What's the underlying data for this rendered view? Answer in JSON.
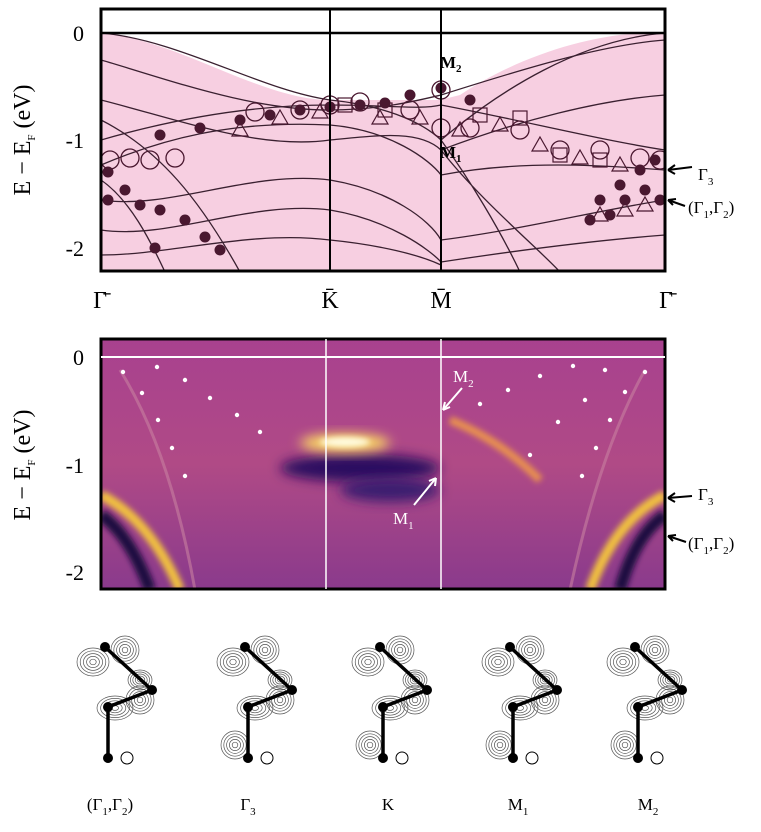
{
  "panels": [
    {
      "ylabel": [
        "E − E",
        "F",
        " (eV)"
      ],
      "yticks": [
        "0",
        "-1",
        "-2"
      ],
      "kpoints": [
        "Γ̄",
        "K̄",
        "M̄",
        "Γ̄"
      ],
      "annotations": {
        "M2": [
          "M",
          "2"
        ],
        "M1": [
          "M",
          "1"
        ],
        "G3": [
          "Γ",
          "3"
        ],
        "G12": [
          "(Γ",
          "1",
          ",Γ",
          "2",
          ")"
        ]
      }
    },
    {
      "ylabel": [
        "E − E",
        "F",
        " (eV)"
      ],
      "yticks": [
        "0",
        "-1",
        "-2"
      ],
      "annotations": {
        "M2": [
          "M",
          "2"
        ],
        "M1": [
          "M",
          "1"
        ],
        "G3": [
          "Γ",
          "3"
        ],
        "G12": [
          "(Γ",
          "1",
          ",Γ",
          "2",
          ")"
        ]
      }
    }
  ],
  "orbitals": [
    [
      "(Γ",
      "1",
      ",Γ",
      "2",
      ")"
    ],
    [
      "Γ",
      "3"
    ],
    [
      "K"
    ],
    [
      "M",
      "1"
    ],
    [
      "M",
      "2"
    ]
  ]
}
